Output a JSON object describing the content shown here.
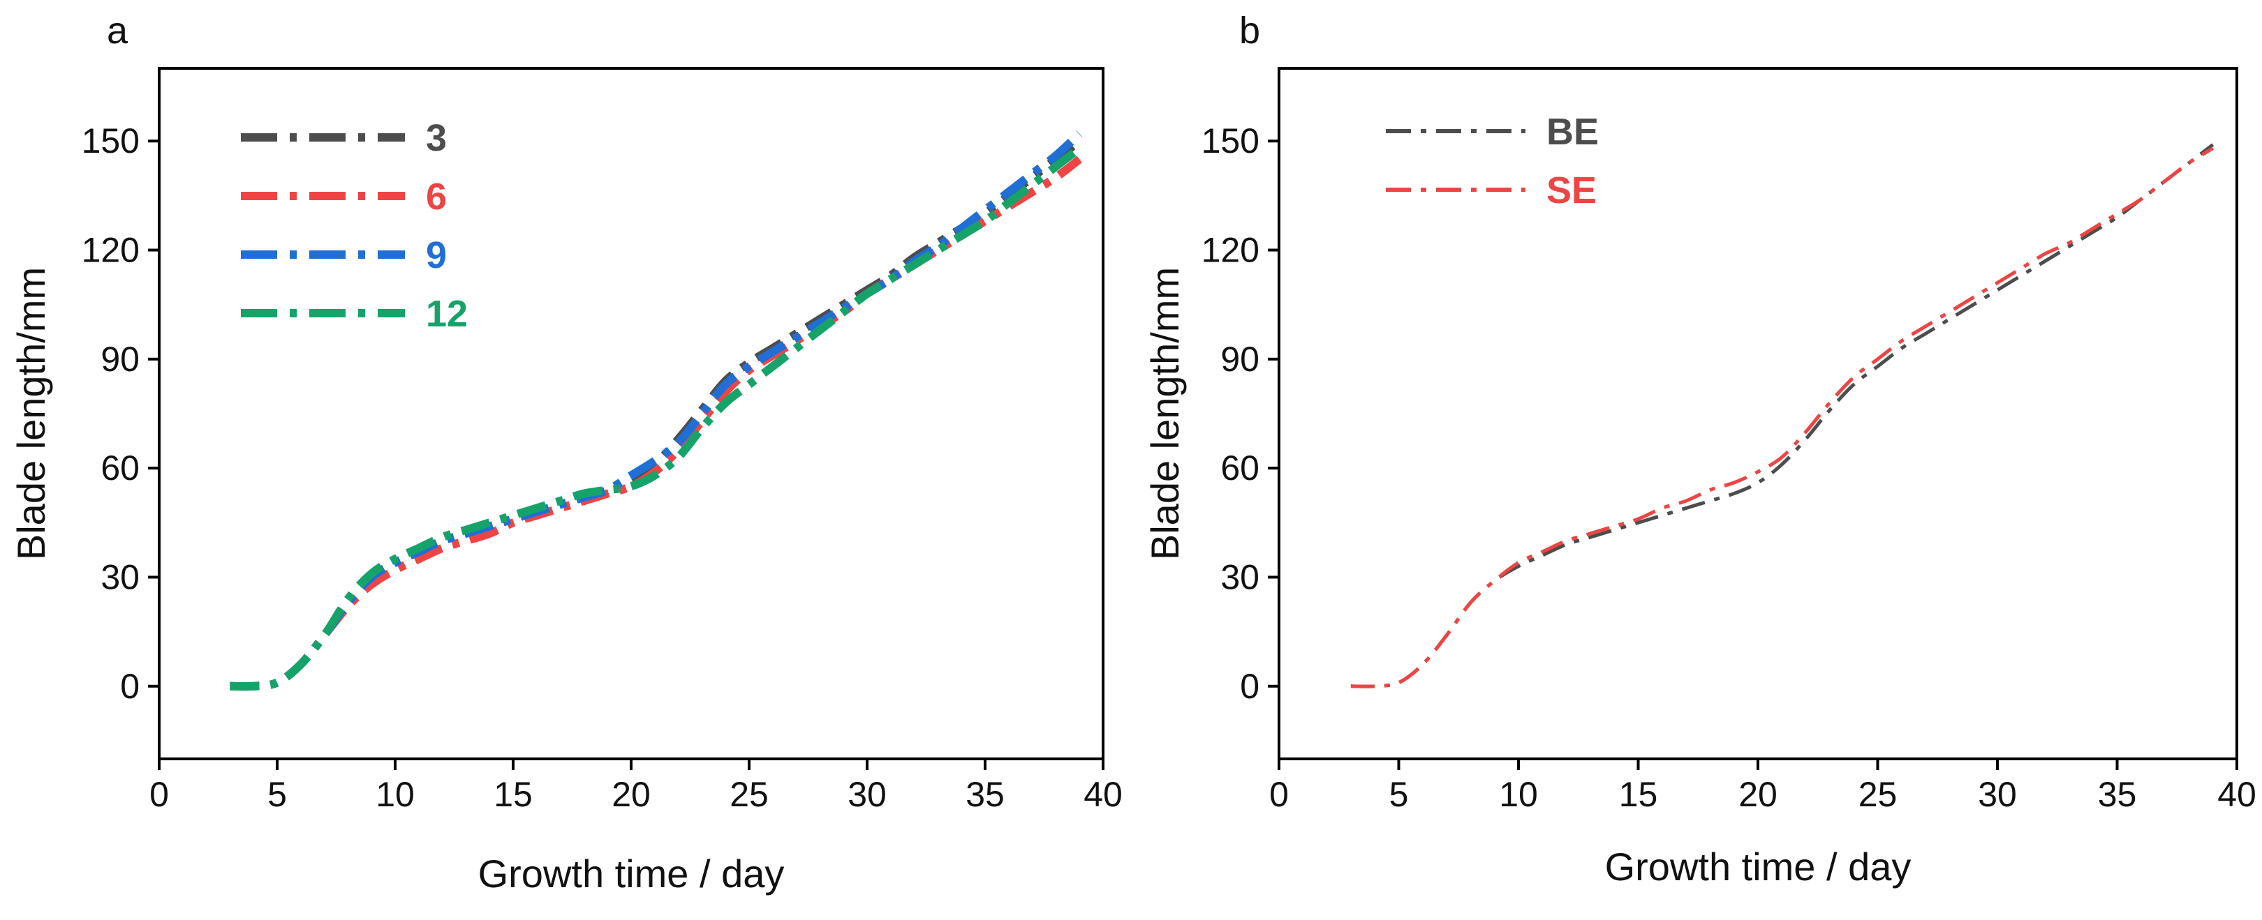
{
  "colors": {
    "s3": "#4d4d4d",
    "s6": "#ef4444",
    "s9": "#1f6fd6",
    "s12": "#16a36a",
    "BE": "#4d4d4d",
    "SE": "#ef4444"
  },
  "chart_data": [
    {
      "type": "line",
      "panel_label": "a",
      "title": "",
      "xlabel": "Growth time / day",
      "ylabel": "Blade length/mm",
      "xlim": [
        0,
        40
      ],
      "ylim": [
        -20,
        170
      ],
      "xticks": [
        0,
        5,
        10,
        15,
        20,
        25,
        30,
        35,
        40
      ],
      "yticks": [
        0,
        30,
        60,
        90,
        120,
        150
      ],
      "legend_position": "top-left",
      "line_style": "dash-dot",
      "series": [
        {
          "name": "3",
          "color_key": "s3",
          "x": [
            3,
            4,
            5,
            6,
            7,
            8,
            9,
            10,
            11,
            12,
            13,
            14,
            15,
            16,
            17,
            18,
            19,
            20,
            21,
            22,
            23,
            24,
            25,
            26,
            27,
            28,
            29,
            30,
            31,
            32,
            33,
            34,
            35,
            36,
            37,
            38,
            39
          ],
          "y": [
            0,
            0,
            1,
            6,
            14,
            23,
            30,
            34,
            37,
            40,
            42,
            44,
            46,
            48,
            50,
            52,
            54,
            57,
            61,
            68,
            76,
            84,
            89,
            93,
            97,
            101,
            105,
            109,
            113,
            118,
            122,
            126,
            130,
            135,
            140,
            145,
            150
          ]
        },
        {
          "name": "6",
          "color_key": "s6",
          "x": [
            3,
            4,
            5,
            6,
            7,
            8,
            9,
            10,
            11,
            12,
            13,
            14,
            15,
            16,
            17,
            18,
            19,
            20,
            21,
            22,
            23,
            24,
            25,
            26,
            27,
            28,
            29,
            30,
            31,
            32,
            33,
            34,
            35,
            36,
            37,
            38,
            39
          ],
          "y": [
            0,
            0,
            1,
            6,
            14,
            22,
            28,
            32,
            35,
            38,
            40,
            42,
            45,
            47,
            49,
            51,
            53,
            55,
            59,
            65,
            73,
            81,
            87,
            91,
            95,
            99,
            103,
            108,
            112,
            116,
            120,
            124,
            128,
            132,
            136,
            140,
            145
          ]
        },
        {
          "name": "9",
          "color_key": "s9",
          "x": [
            3,
            4,
            5,
            6,
            7,
            8,
            9,
            10,
            11,
            12,
            13,
            14,
            15,
            16,
            17,
            18,
            19,
            20,
            21,
            22,
            23,
            24,
            25,
            26,
            27,
            28,
            29,
            30,
            31,
            32,
            33,
            34,
            35,
            36,
            37,
            38,
            39
          ],
          "y": [
            0,
            0,
            1,
            6,
            14,
            23,
            30,
            34,
            37,
            40,
            42,
            44,
            46,
            48,
            50,
            52,
            54,
            58,
            62,
            67,
            75,
            83,
            88,
            92,
            96,
            100,
            104,
            108,
            112,
            117,
            121,
            126,
            131,
            136,
            141,
            146,
            152
          ]
        },
        {
          "name": "12",
          "color_key": "s12",
          "x": [
            3,
            4,
            5,
            6,
            7,
            8,
            9,
            10,
            11,
            12,
            13,
            14,
            15,
            16,
            17,
            18,
            19,
            20,
            21,
            22,
            23,
            24,
            25,
            26,
            27,
            28,
            29,
            30,
            31,
            32,
            33,
            34,
            35,
            36,
            37,
            38,
            39
          ],
          "y": [
            0,
            0,
            1,
            6,
            14,
            24,
            31,
            35,
            38,
            41,
            43,
            45,
            47,
            49,
            51,
            53,
            54,
            55,
            58,
            63,
            71,
            78,
            83,
            88,
            93,
            98,
            103,
            108,
            112,
            116,
            120,
            124,
            128,
            133,
            138,
            143,
            148
          ]
        }
      ]
    },
    {
      "type": "line",
      "panel_label": "b",
      "title": "",
      "xlabel": "Growth time / day",
      "ylabel": "Blade length/mm",
      "xlim": [
        0,
        40
      ],
      "ylim": [
        -20,
        170
      ],
      "xticks": [
        0,
        5,
        10,
        15,
        20,
        25,
        30,
        35,
        40
      ],
      "yticks": [
        0,
        30,
        60,
        90,
        120,
        150
      ],
      "legend_position": "top-left",
      "line_style": "dash-dot",
      "series": [
        {
          "name": "BE",
          "color_key": "BE",
          "x": [
            3,
            4,
            5,
            6,
            7,
            8,
            9,
            10,
            11,
            12,
            13,
            14,
            15,
            16,
            17,
            18,
            19,
            20,
            21,
            22,
            23,
            24,
            25,
            26,
            27,
            28,
            29,
            30,
            31,
            32,
            33,
            34,
            35,
            36,
            37,
            38,
            39
          ],
          "y": [
            0,
            0,
            1,
            6,
            14,
            23,
            29,
            33,
            36,
            39,
            41,
            43,
            45,
            47,
            49,
            51,
            53,
            56,
            61,
            68,
            76,
            83,
            88,
            93,
            97,
            101,
            105,
            109,
            113,
            117,
            121,
            125,
            129,
            134,
            139,
            144,
            149
          ]
        },
        {
          "name": "SE",
          "color_key": "SE",
          "x": [
            3,
            4,
            5,
            6,
            7,
            8,
            9,
            10,
            11,
            12,
            13,
            14,
            15,
            16,
            17,
            18,
            19,
            20,
            21,
            22,
            23,
            24,
            25,
            26,
            27,
            28,
            29,
            30,
            31,
            32,
            33,
            34,
            35,
            36,
            37,
            38,
            39
          ],
          "y": [
            0,
            0,
            1,
            6,
            14,
            23,
            29,
            34,
            37,
            40,
            42,
            44,
            46,
            49,
            51,
            54,
            56,
            59,
            63,
            70,
            78,
            85,
            90,
            95,
            99,
            103,
            107,
            111,
            115,
            119,
            122,
            126,
            130,
            134,
            139,
            144,
            148
          ]
        }
      ]
    }
  ]
}
